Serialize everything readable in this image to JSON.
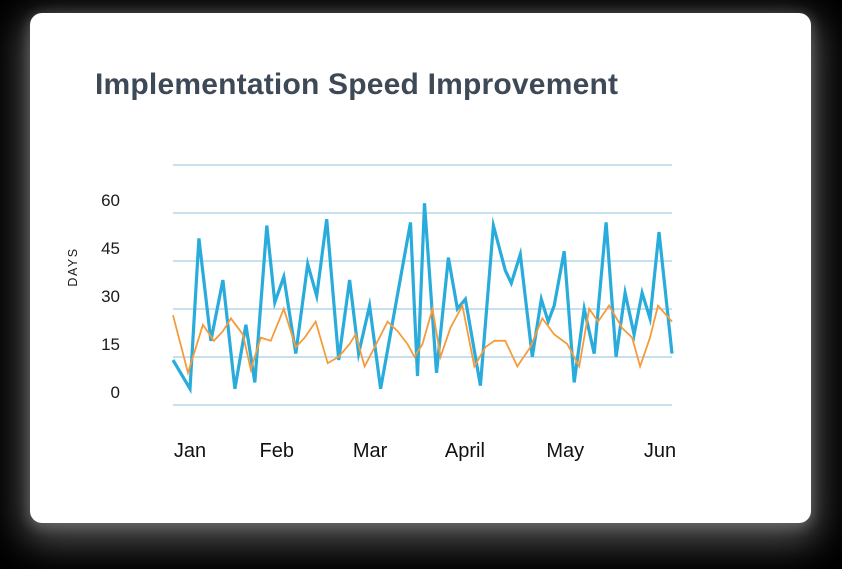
{
  "page": {
    "background_color": "#000000"
  },
  "card": {
    "background_color": "#ffffff"
  },
  "chart": {
    "title": "Implementation Speed Improvement",
    "title_color": "#3E4957",
    "grid_color": "#8FC2DB",
    "tick_text_color": "#1A1A1A",
    "month_text_color": "#111111",
    "y_axis": {
      "label": "DAYS",
      "tick_labels": [
        "60",
        "45",
        "30",
        "15",
        "0"
      ],
      "tick_values": [
        60,
        45,
        30,
        15,
        0
      ],
      "gridline_values": [
        75,
        60,
        45,
        30,
        15,
        0
      ]
    },
    "x_axis": {
      "month_labels": [
        "Jan",
        "Feb",
        "Mar",
        "April",
        "May",
        "Jun"
      ]
    }
  },
  "chart_data": {
    "type": "line",
    "title": "Implementation Speed Improvement",
    "ylabel": "DAYS",
    "ylim": [
      0,
      75
    ],
    "yticks": [
      0,
      15,
      30,
      45,
      60
    ],
    "xticks": [
      "Jan",
      "Feb",
      "Mar",
      "April",
      "May",
      "Jun"
    ],
    "grid": "horizontal",
    "legend": "none",
    "x_unit": "fraction of Jan–Jun span",
    "y_unit": "days",
    "series": [
      {
        "name": "blue",
        "color": "#29ACDB",
        "stroke_width": 3.2,
        "points": [
          [
            0.0,
            10
          ],
          [
            0.034,
            1
          ],
          [
            0.052,
            48
          ],
          [
            0.076,
            16
          ],
          [
            0.1,
            35
          ],
          [
            0.124,
            1
          ],
          [
            0.146,
            21
          ],
          [
            0.164,
            3
          ],
          [
            0.188,
            52
          ],
          [
            0.204,
            28
          ],
          [
            0.222,
            36
          ],
          [
            0.246,
            12
          ],
          [
            0.27,
            40
          ],
          [
            0.288,
            30
          ],
          [
            0.308,
            54
          ],
          [
            0.332,
            10
          ],
          [
            0.354,
            35
          ],
          [
            0.372,
            12
          ],
          [
            0.394,
            27
          ],
          [
            0.416,
            1
          ],
          [
            0.476,
            53
          ],
          [
            0.49,
            5
          ],
          [
            0.504,
            59
          ],
          [
            0.528,
            6
          ],
          [
            0.552,
            42
          ],
          [
            0.57,
            26
          ],
          [
            0.586,
            29
          ],
          [
            0.616,
            2
          ],
          [
            0.642,
            52
          ],
          [
            0.666,
            38
          ],
          [
            0.678,
            34
          ],
          [
            0.696,
            43
          ],
          [
            0.72,
            11
          ],
          [
            0.738,
            29
          ],
          [
            0.752,
            22
          ],
          [
            0.764,
            27
          ],
          [
            0.784,
            44
          ],
          [
            0.804,
            3
          ],
          [
            0.824,
            26
          ],
          [
            0.844,
            12
          ],
          [
            0.868,
            53
          ],
          [
            0.888,
            11
          ],
          [
            0.906,
            31
          ],
          [
            0.924,
            18
          ],
          [
            0.94,
            31
          ],
          [
            0.956,
            23
          ],
          [
            0.974,
            50
          ],
          [
            1.0,
            12
          ]
        ]
      },
      {
        "name": "orange",
        "color": "#F59B3C",
        "stroke_width": 1.8,
        "points": [
          [
            0.0,
            24
          ],
          [
            0.03,
            6
          ],
          [
            0.06,
            21
          ],
          [
            0.082,
            16
          ],
          [
            0.1,
            19
          ],
          [
            0.116,
            23
          ],
          [
            0.14,
            18
          ],
          [
            0.156,
            7
          ],
          [
            0.176,
            17
          ],
          [
            0.196,
            16
          ],
          [
            0.222,
            26
          ],
          [
            0.246,
            14
          ],
          [
            0.264,
            17
          ],
          [
            0.286,
            22
          ],
          [
            0.31,
            9
          ],
          [
            0.332,
            11
          ],
          [
            0.354,
            15
          ],
          [
            0.366,
            18
          ],
          [
            0.384,
            8
          ],
          [
            0.404,
            14
          ],
          [
            0.43,
            22
          ],
          [
            0.45,
            19
          ],
          [
            0.47,
            15
          ],
          [
            0.484,
            11
          ],
          [
            0.5,
            15
          ],
          [
            0.52,
            26
          ],
          [
            0.536,
            11
          ],
          [
            0.556,
            20
          ],
          [
            0.58,
            27
          ],
          [
            0.604,
            8
          ],
          [
            0.626,
            14
          ],
          [
            0.644,
            16
          ],
          [
            0.666,
            16
          ],
          [
            0.69,
            8
          ],
          [
            0.716,
            14
          ],
          [
            0.74,
            23
          ],
          [
            0.764,
            18
          ],
          [
            0.79,
            15
          ],
          [
            0.814,
            8
          ],
          [
            0.834,
            26
          ],
          [
            0.852,
            22
          ],
          [
            0.874,
            27
          ],
          [
            0.9,
            20
          ],
          [
            0.92,
            17
          ],
          [
            0.936,
            8
          ],
          [
            0.956,
            17
          ],
          [
            0.972,
            27
          ],
          [
            1.0,
            22
          ]
        ]
      }
    ]
  }
}
